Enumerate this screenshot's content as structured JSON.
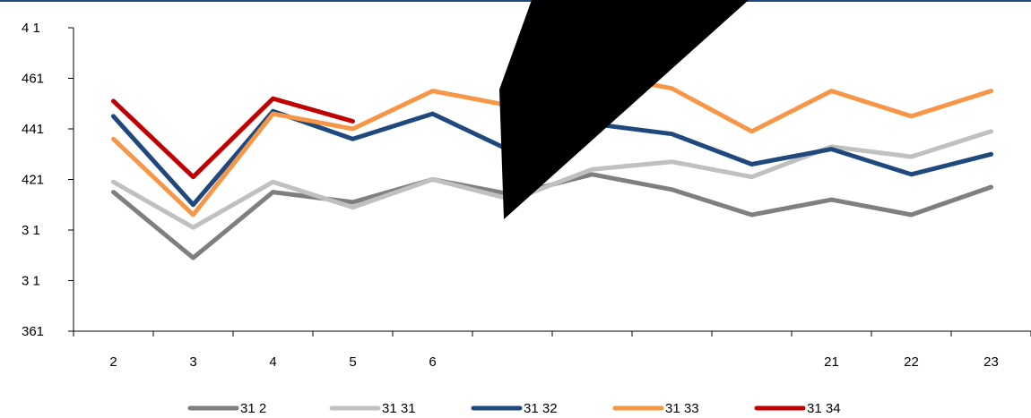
{
  "chart_data": {
    "type": "line",
    "x": [
      "2",
      "3",
      "4",
      "5",
      "6",
      "",
      "",
      "",
      "",
      "21",
      "22",
      "23"
    ],
    "y_ticks": [
      "4 1",
      "461",
      "441",
      "421",
      "3 1",
      "3 1",
      "361"
    ],
    "ylim": [
      360,
      480
    ],
    "grid": false,
    "legend_position": "bottom",
    "series": [
      {
        "name": "31 2",
        "color": "#7f7f7f",
        "values": [
          415,
          389,
          415,
          411,
          420,
          414,
          422,
          416,
          406,
          412,
          406,
          417
        ]
      },
      {
        "name": "31 31",
        "color": "#c0c0c0",
        "values": [
          419,
          401,
          419,
          409,
          420,
          412,
          424,
          427,
          421,
          433,
          429,
          439
        ]
      },
      {
        "name": "31 32",
        "color": "#1f497d",
        "values": [
          445,
          410,
          447,
          436,
          446,
          431,
          442,
          438,
          426,
          432,
          422,
          430
        ]
      },
      {
        "name": "31 33",
        "color": "#f79646",
        "values": [
          436,
          406,
          446,
          440,
          455,
          449,
          462,
          456,
          439,
          455,
          445,
          455
        ]
      },
      {
        "name": "31 34",
        "color": "#c00000",
        "values": [
          451,
          421,
          452,
          443,
          null,
          null,
          null,
          null,
          null,
          null,
          null,
          null
        ]
      }
    ]
  },
  "colors": {
    "top_rule": "#1f497d",
    "axis": "#000000",
    "overlay_shape": "#000000"
  }
}
